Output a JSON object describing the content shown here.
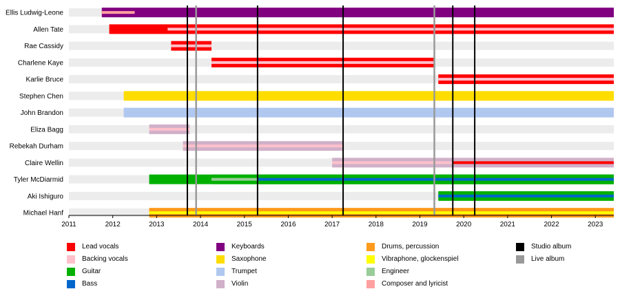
{
  "chart_data": {
    "type": "timeline",
    "title": "",
    "xlim": [
      2011,
      2023.42
    ],
    "x_ticks": [
      "2011",
      "2012",
      "2013",
      "2014",
      "2015",
      "2016",
      "2017",
      "2018",
      "2019",
      "2020",
      "2021",
      "2022",
      "2023"
    ],
    "members": [
      {
        "name": "Ellis Ludwig-Leone",
        "bars": [
          {
            "role": "Keyboards",
            "start": 2011.75,
            "end": 2023.42,
            "secondary": "Composer and lyricist",
            "secondary_end": 2012.5
          }
        ]
      },
      {
        "name": "Allen Tate",
        "bars": [
          {
            "role": "Lead vocals",
            "start": 2011.92,
            "end": 2023.42,
            "secondary": "Backing vocals",
            "secondary_start": 2013.25
          }
        ]
      },
      {
        "name": "Rae Cassidy",
        "bars": [
          {
            "role": "Lead vocals",
            "start": 2013.33,
            "end": 2014.25,
            "secondary": "Backing vocals"
          }
        ]
      },
      {
        "name": "Charlene Kaye",
        "bars": [
          {
            "role": "Lead vocals",
            "start": 2014.25,
            "end": 2019.33,
            "secondary": "Backing vocals"
          }
        ]
      },
      {
        "name": "Karlie Bruce",
        "bars": [
          {
            "role": "Lead vocals",
            "start": 2019.42,
            "end": 2023.42,
            "secondary": "Backing vocals"
          }
        ]
      },
      {
        "name": "Stephen Chen",
        "bars": [
          {
            "role": "Saxophone",
            "start": 2012.25,
            "end": 2023.42
          }
        ]
      },
      {
        "name": "John Brandon",
        "bars": [
          {
            "role": "Trumpet",
            "start": 2012.25,
            "end": 2023.42
          }
        ]
      },
      {
        "name": "Eliza Bagg",
        "bars": [
          {
            "role": "Violin",
            "start": 2012.83,
            "end": 2013.75,
            "secondary": "Backing vocals"
          }
        ]
      },
      {
        "name": "Rebekah Durham",
        "bars": [
          {
            "role": "Violin",
            "start": 2013.6,
            "end": 2017.25,
            "secondary": "Backing vocals"
          }
        ]
      },
      {
        "name": "Claire Wellin",
        "bars": [
          {
            "role": "Violin",
            "start": 2017.0,
            "end": 2019.75,
            "secondary": "Backing vocals"
          },
          {
            "role": "Violin",
            "start": 2019.75,
            "end": 2023.42,
            "secondary": "Lead vocals"
          }
        ]
      },
      {
        "name": "Tyler McDiarmid",
        "bars": [
          {
            "role": "Guitar",
            "start": 2012.83,
            "end": 2023.42
          },
          {
            "role": "Guitar",
            "start": 2014.25,
            "end": 2023.42,
            "secondary": "Engineer",
            "secondary_end": 2015.3
          },
          {
            "role": "Guitar",
            "start": 2015.3,
            "end": 2023.42,
            "secondary": "Bass"
          }
        ]
      },
      {
        "name": "Aki Ishiguro",
        "bars": [
          {
            "role": "Guitar",
            "start": 2019.42,
            "end": 2023.42,
            "secondary": "Bass"
          }
        ]
      },
      {
        "name": "Michael Hanf",
        "bars": [
          {
            "role": "Drums, percussion",
            "start": 2012.83,
            "end": 2023.42,
            "secondary": "Vibraphone, glockenspiel"
          }
        ]
      }
    ],
    "studio_albums": [
      2013.7,
      2015.3,
      2017.25,
      2019.75,
      2020.25
    ],
    "live_albums": [
      2013.9,
      2019.33
    ],
    "legend": [
      {
        "label": "Lead vocals",
        "color": "#ff0000"
      },
      {
        "label": "Backing vocals",
        "color": "#ffc0cb"
      },
      {
        "label": "Guitar",
        "color": "#00b000"
      },
      {
        "label": "Bass",
        "color": "#0066cc"
      },
      {
        "label": "Keyboards",
        "color": "#800080"
      },
      {
        "label": "Saxophone",
        "color": "#ffdd00"
      },
      {
        "label": "Trumpet",
        "color": "#b0c8f0"
      },
      {
        "label": "Violin",
        "color": "#d0b0c8"
      },
      {
        "label": "Drums, percussion",
        "color": "#ff9a1a"
      },
      {
        "label": "Vibraphone, glockenspiel",
        "color": "#ffff00"
      },
      {
        "label": "Engineer",
        "color": "#99cc99"
      },
      {
        "label": "Composer and lyricist",
        "color": "#ffa0a0"
      },
      {
        "label": "Studio album",
        "color": "#000000"
      },
      {
        "label": "Live album",
        "color": "#999999"
      }
    ]
  }
}
